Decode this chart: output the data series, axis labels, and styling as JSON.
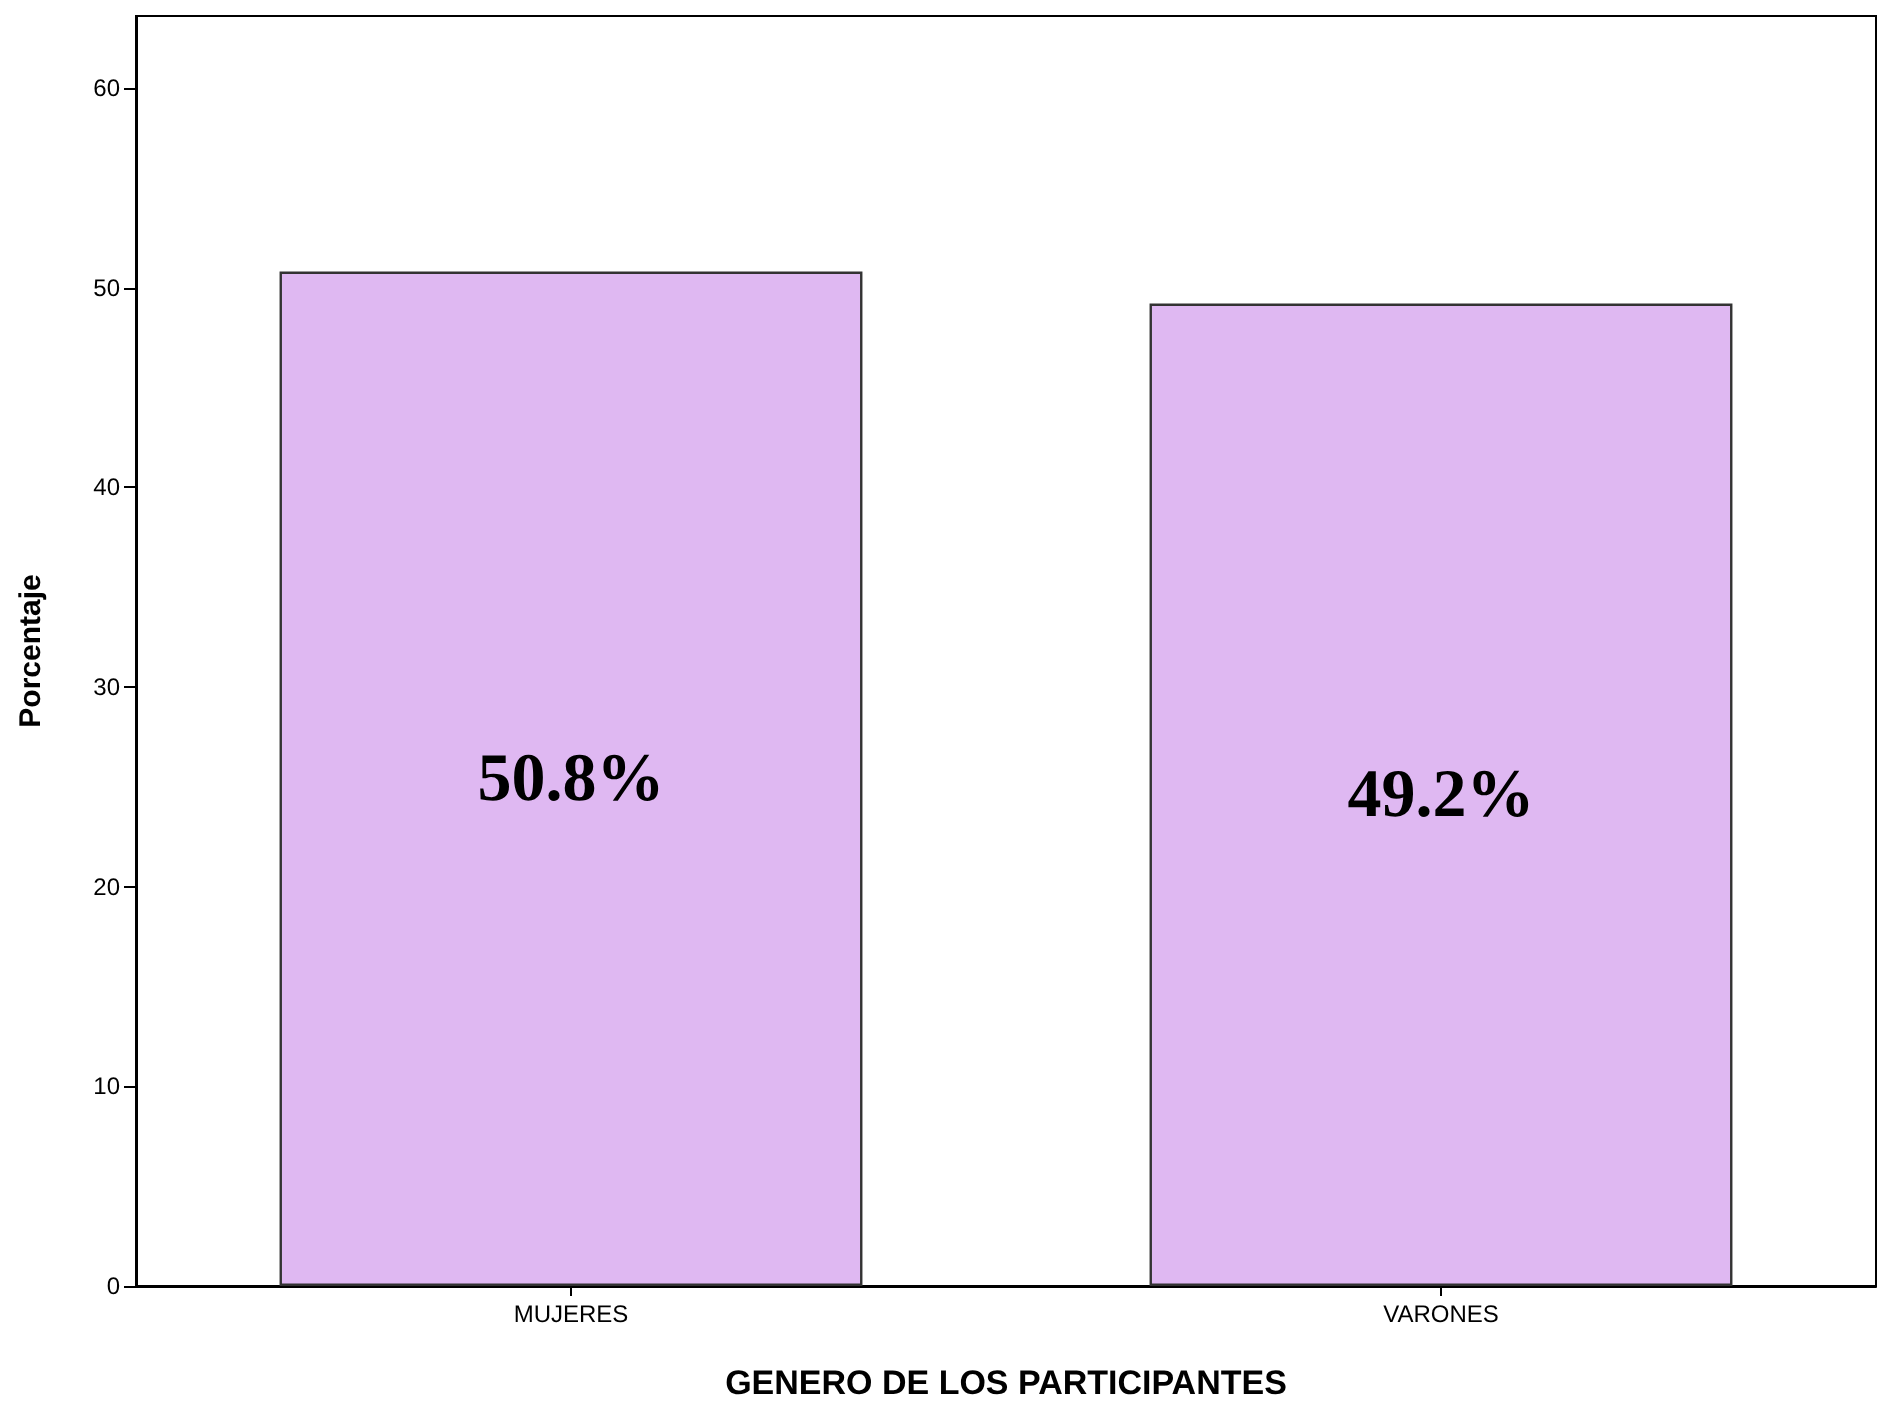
{
  "chart_data": {
    "type": "bar",
    "xlabel": "GENERO DE LOS PARTICIPANTES",
    "ylabel": "Porcentaje",
    "categories": [
      "MUJERES",
      "VARONES"
    ],
    "values": [
      50.8,
      49.2
    ],
    "value_labels": [
      "50.8%",
      "49.2%"
    ],
    "color": "#dfb8f2",
    "ylim": [
      0,
      63.6
    ],
    "yticks": [
      0,
      10,
      20,
      30,
      40,
      50,
      60
    ],
    "grid": false
  }
}
